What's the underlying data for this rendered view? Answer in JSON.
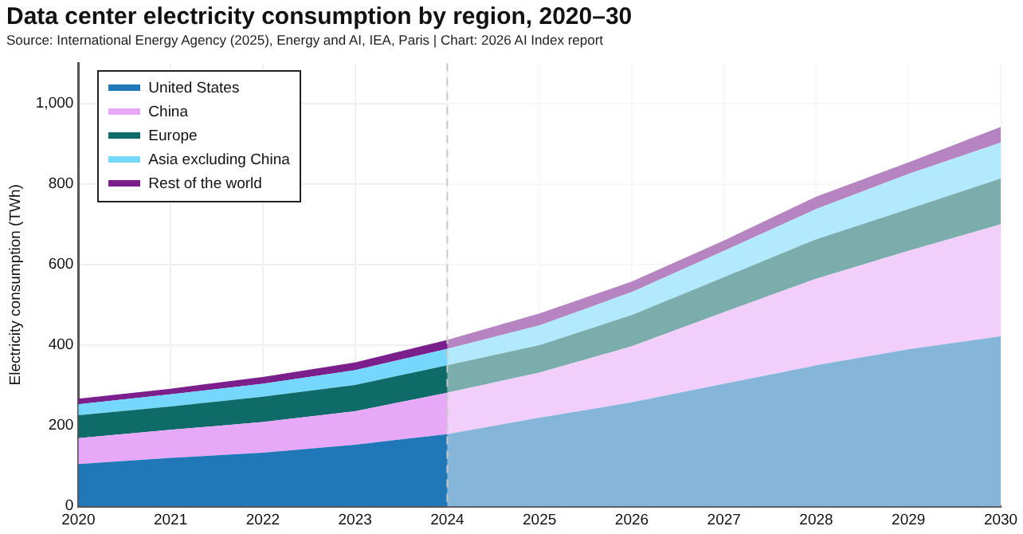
{
  "chart_data": {
    "type": "area",
    "title": "Data center electricity consumption by region, 2020–30",
    "subtitle": "Source: International Energy Agency (2025), Energy and AI, IEA, Paris | Chart: 2026 AI Index report",
    "ylabel": "Electricity consumption (TWh)",
    "x": [
      2020,
      2021,
      2022,
      2023,
      2024,
      2025,
      2026,
      2027,
      2028,
      2029,
      2030
    ],
    "stacked": true,
    "series": [
      {
        "name": "United States",
        "color": "#2178b8",
        "values": [
          105,
          120,
          133,
          153,
          179,
          220,
          258,
          304,
          350,
          390,
          422
        ]
      },
      {
        "name": "China",
        "color": "#e8a8f8",
        "values": [
          64,
          70,
          76,
          83,
          103,
          112,
          139,
          178,
          215,
          244,
          278
        ]
      },
      {
        "name": "Europe",
        "color": "#0f6b68",
        "values": [
          57,
          58,
          63,
          65,
          68,
          68,
          78,
          87,
          98,
          104,
          114
        ]
      },
      {
        "name": "Asia excluding China",
        "color": "#74d7fb",
        "values": [
          27,
          30,
          32,
          37,
          41,
          49,
          57,
          65,
          75,
          87,
          89
        ]
      },
      {
        "name": "Rest of the world",
        "color": "#7b1f8c",
        "values": [
          14,
          14,
          17,
          19,
          22,
          30,
          26,
          26,
          31,
          29,
          39
        ]
      }
    ],
    "xlim": [
      2020,
      2030
    ],
    "xticks": [
      2020,
      2021,
      2022,
      2023,
      2024,
      2025,
      2026,
      2027,
      2028,
      2029,
      2030
    ],
    "ylim": [
      0,
      1100
    ],
    "yticks": [
      0,
      200,
      400,
      600,
      800,
      {
        "value": 1000,
        "label": "1,000"
      }
    ],
    "ref_lines": [
      {
        "axis": "x",
        "value": 2024,
        "color": "#c8c8c8",
        "line_style": "dashed"
      }
    ],
    "bands": [
      {
        "axis": "x",
        "from": 2024,
        "to": 2030,
        "color": "#ffffff"
      }
    ],
    "grid": true,
    "legend": "top left",
    "marker": "none"
  }
}
